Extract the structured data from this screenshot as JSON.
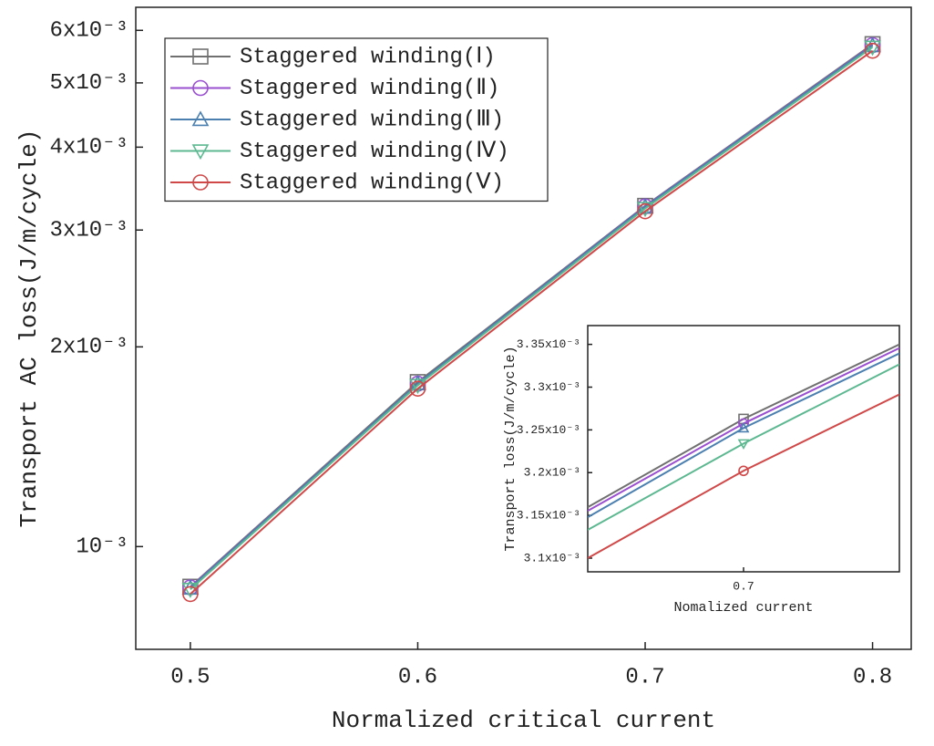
{
  "chart_data": [
    {
      "type": "line",
      "xlabel": "Normalized critical current",
      "ylabel": "Transport AC loss(J/m/cycle)",
      "x": [
        0.5,
        0.6,
        0.7,
        0.8
      ],
      "xlim": [
        0.476,
        0.817
      ],
      "xticks": [
        0.5,
        0.6,
        0.7,
        0.8
      ],
      "yscale": "log",
      "ylim": [
        0.0007,
        0.0065
      ],
      "yticks": [
        {
          "value": 0.001,
          "label": "10⁻³"
        },
        {
          "value": 0.002,
          "label": "2x10⁻³"
        },
        {
          "value": 0.003,
          "label": "3x10⁻³"
        },
        {
          "value": 0.004,
          "label": "4x10⁻³"
        },
        {
          "value": 0.005,
          "label": "5x10⁻³"
        },
        {
          "value": 0.006,
          "label": "6x10⁻³"
        }
      ],
      "legend": "upper left",
      "series": [
        {
          "name": "Staggered winding(Ⅰ)",
          "color": "#707070",
          "marker": "square",
          "values": [
            0.00087,
            0.00177,
            0.003263,
            0.00572
          ]
        },
        {
          "name": "Staggered winding(Ⅱ)",
          "color": "#9a4fd0",
          "marker": "circle",
          "values": [
            0.000868,
            0.00176,
            0.003257,
            0.0057
          ]
        },
        {
          "name": "Staggered winding(Ⅲ)",
          "color": "#4a7fb0",
          "marker": "triangle-up",
          "values": [
            0.000866,
            0.00176,
            0.003252,
            0.00569
          ]
        },
        {
          "name": "Staggered winding(Ⅳ)",
          "color": "#5cb890",
          "marker": "triangle-down",
          "values": [
            0.000862,
            0.00175,
            0.003234,
            0.00566
          ]
        },
        {
          "name": "Staggered winding(Ⅴ)",
          "color": "#d04848",
          "marker": "circle",
          "values": [
            0.000848,
            0.00173,
            0.003202,
            0.00559
          ]
        }
      ]
    },
    {
      "type": "line",
      "xlabel": "Nomalized current",
      "ylabel": "Transport loss(J/m/cycle)",
      "x": [
        0.6958,
        0.7,
        0.7042
      ],
      "xlim": [
        0.6958,
        0.7042
      ],
      "xticks": [
        0.7
      ],
      "ylim": [
        0.003084,
        0.003372
      ],
      "yticks": [
        {
          "value": 0.0031,
          "label": "3.1x10⁻³"
        },
        {
          "value": 0.00315,
          "label": "3.15x10⁻³"
        },
        {
          "value": 0.0032,
          "label": "3.2x10⁻³"
        },
        {
          "value": 0.00325,
          "label": "3.25x10⁻³"
        },
        {
          "value": 0.0033,
          "label": "3.3x10⁻³"
        },
        {
          "value": 0.00335,
          "label": "3.35x10⁻³"
        }
      ],
      "series": [
        {
          "color": "#707070",
          "marker": "square",
          "values": [
            0.0031596,
            0.0032628,
            0.00335
          ]
        },
        {
          "color": "#9a4fd0",
          "marker": "circle",
          "values": [
            0.0031553,
            0.0032574,
            0.0033457
          ]
        },
        {
          "color": "#4a7fb0",
          "marker": "triangle-up",
          "values": [
            0.0031479,
            0.0032521,
            0.0033394
          ]
        },
        {
          "color": "#5cb890",
          "marker": "triangle-down",
          "values": [
            0.003133,
            0.003234,
            0.0033266
          ]
        },
        {
          "color": "#d04848",
          "marker": "circle",
          "values": [
            0.0031,
            0.0032021,
            0.0032915
          ]
        }
      ]
    }
  ]
}
